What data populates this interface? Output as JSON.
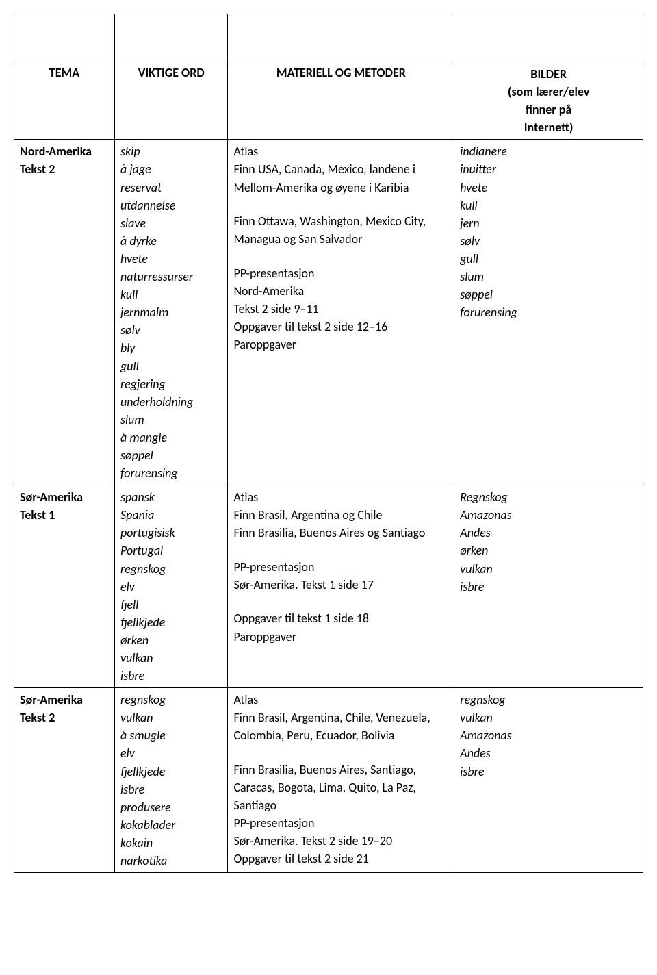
{
  "table": {
    "columns": [
      "col-tema",
      "col-ord",
      "col-mat",
      "col-bild"
    ],
    "headers": {
      "tema": "TEMA",
      "ord": "VIKTIGE ORD",
      "mat": "MATERIELL OG METODER",
      "bild_line1": "BILDER",
      "bild_line2": "(som lærer/elev",
      "bild_line3": "finner på",
      "bild_line4": "Internett)"
    },
    "rows": [
      {
        "tema": [
          "Nord-Amerika",
          "Tekst 2"
        ],
        "ord": [
          "skip",
          "å jage",
          "reservat",
          "utdannelse",
          "slave",
          "å dyrke",
          "hvete",
          "naturressurser",
          "kull",
          "jernmalm",
          "sølv",
          "bly",
          "gull",
          "regjering",
          "underholdning",
          "slum",
          "å mangle",
          "søppel",
          "forurensing"
        ],
        "mat": [
          "Atlas",
          "Finn USA, Canada, Mexico, landene i Mellom-Amerika og øyene i Karibia",
          "",
          "Finn Ottawa, Washington, Mexico City, Managua og San Salvador",
          "",
          "PP-presentasjon",
          "Nord-Amerika",
          "Tekst 2 side 9–11",
          "Oppgaver til tekst 2 side 12–16",
          "Paroppgaver"
        ],
        "bild": [
          "indianere",
          "inuitter",
          "hvete",
          "kull",
          "jern",
          "sølv",
          "gull",
          "slum",
          "søppel",
          "forurensing"
        ]
      },
      {
        "tema": [
          "Sør-Amerika",
          "Tekst 1"
        ],
        "ord": [
          "spansk",
          "Spania",
          "portugisisk",
          "Portugal",
          "regnskog",
          "elv",
          "fjell",
          "fjellkjede",
          "ørken",
          "vulkan",
          "isbre"
        ],
        "mat": [
          "Atlas",
          "Finn Brasil, Argentina og Chile",
          "Finn Brasilia, Buenos Aires og Santiago",
          "",
          "PP-presentasjon",
          "Sør-Amerika. Tekst 1 side 17",
          "",
          "Oppgaver til tekst 1 side 18",
          "Paroppgaver"
        ],
        "bild": [
          "Regnskog",
          "Amazonas",
          "Andes",
          "ørken",
          "vulkan",
          "isbre"
        ]
      },
      {
        "tema": [
          "Sør-Amerika",
          "Tekst 2"
        ],
        "ord": [
          "regnskog",
          "vulkan",
          "å smugle",
          "elv",
          "fjellkjede",
          "isbre",
          "produsere",
          "kokablader",
          "kokain",
          "narkotika"
        ],
        "mat": [
          "Atlas",
          "Finn Brasil, Argentina, Chile, Venezuela, Colombia, Peru, Ecuador, Bolivia",
          "",
          "Finn Brasilia, Buenos Aires, Santiago, Caracas, Bogota, Lima, Quito, La Paz, Santiago",
          "PP-presentasjon",
          "Sør-Amerika. Tekst 2 side 19–20",
          "Oppgaver til tekst 2 side 21"
        ],
        "bild": [
          "regnskog",
          "vulkan",
          "Amazonas",
          "Andes",
          "isbre"
        ]
      }
    ]
  }
}
